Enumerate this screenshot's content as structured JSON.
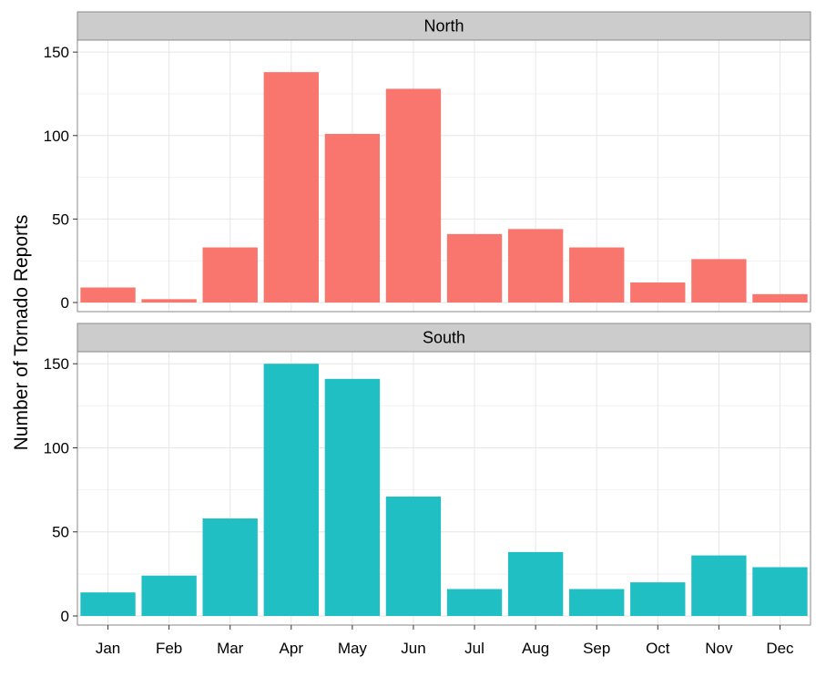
{
  "chart_data": {
    "type": "bar",
    "ylabel": "Number of Tornado Reports",
    "xlabel": "",
    "categories": [
      "Jan",
      "Feb",
      "Mar",
      "Apr",
      "May",
      "Jun",
      "Jul",
      "Aug",
      "Sep",
      "Oct",
      "Nov",
      "Dec"
    ],
    "ylim": [
      0,
      155
    ],
    "yticks": [
      0,
      50,
      100,
      150
    ],
    "grid": true,
    "legend": "none",
    "facets": [
      {
        "name": "North",
        "color": "#F8766D",
        "values": [
          9,
          2,
          33,
          138,
          101,
          128,
          41,
          44,
          33,
          12,
          26,
          5
        ]
      },
      {
        "name": "South",
        "color": "#20BFC4",
        "values": [
          14,
          24,
          58,
          150,
          141,
          71,
          16,
          38,
          16,
          20,
          36,
          29
        ]
      }
    ]
  }
}
